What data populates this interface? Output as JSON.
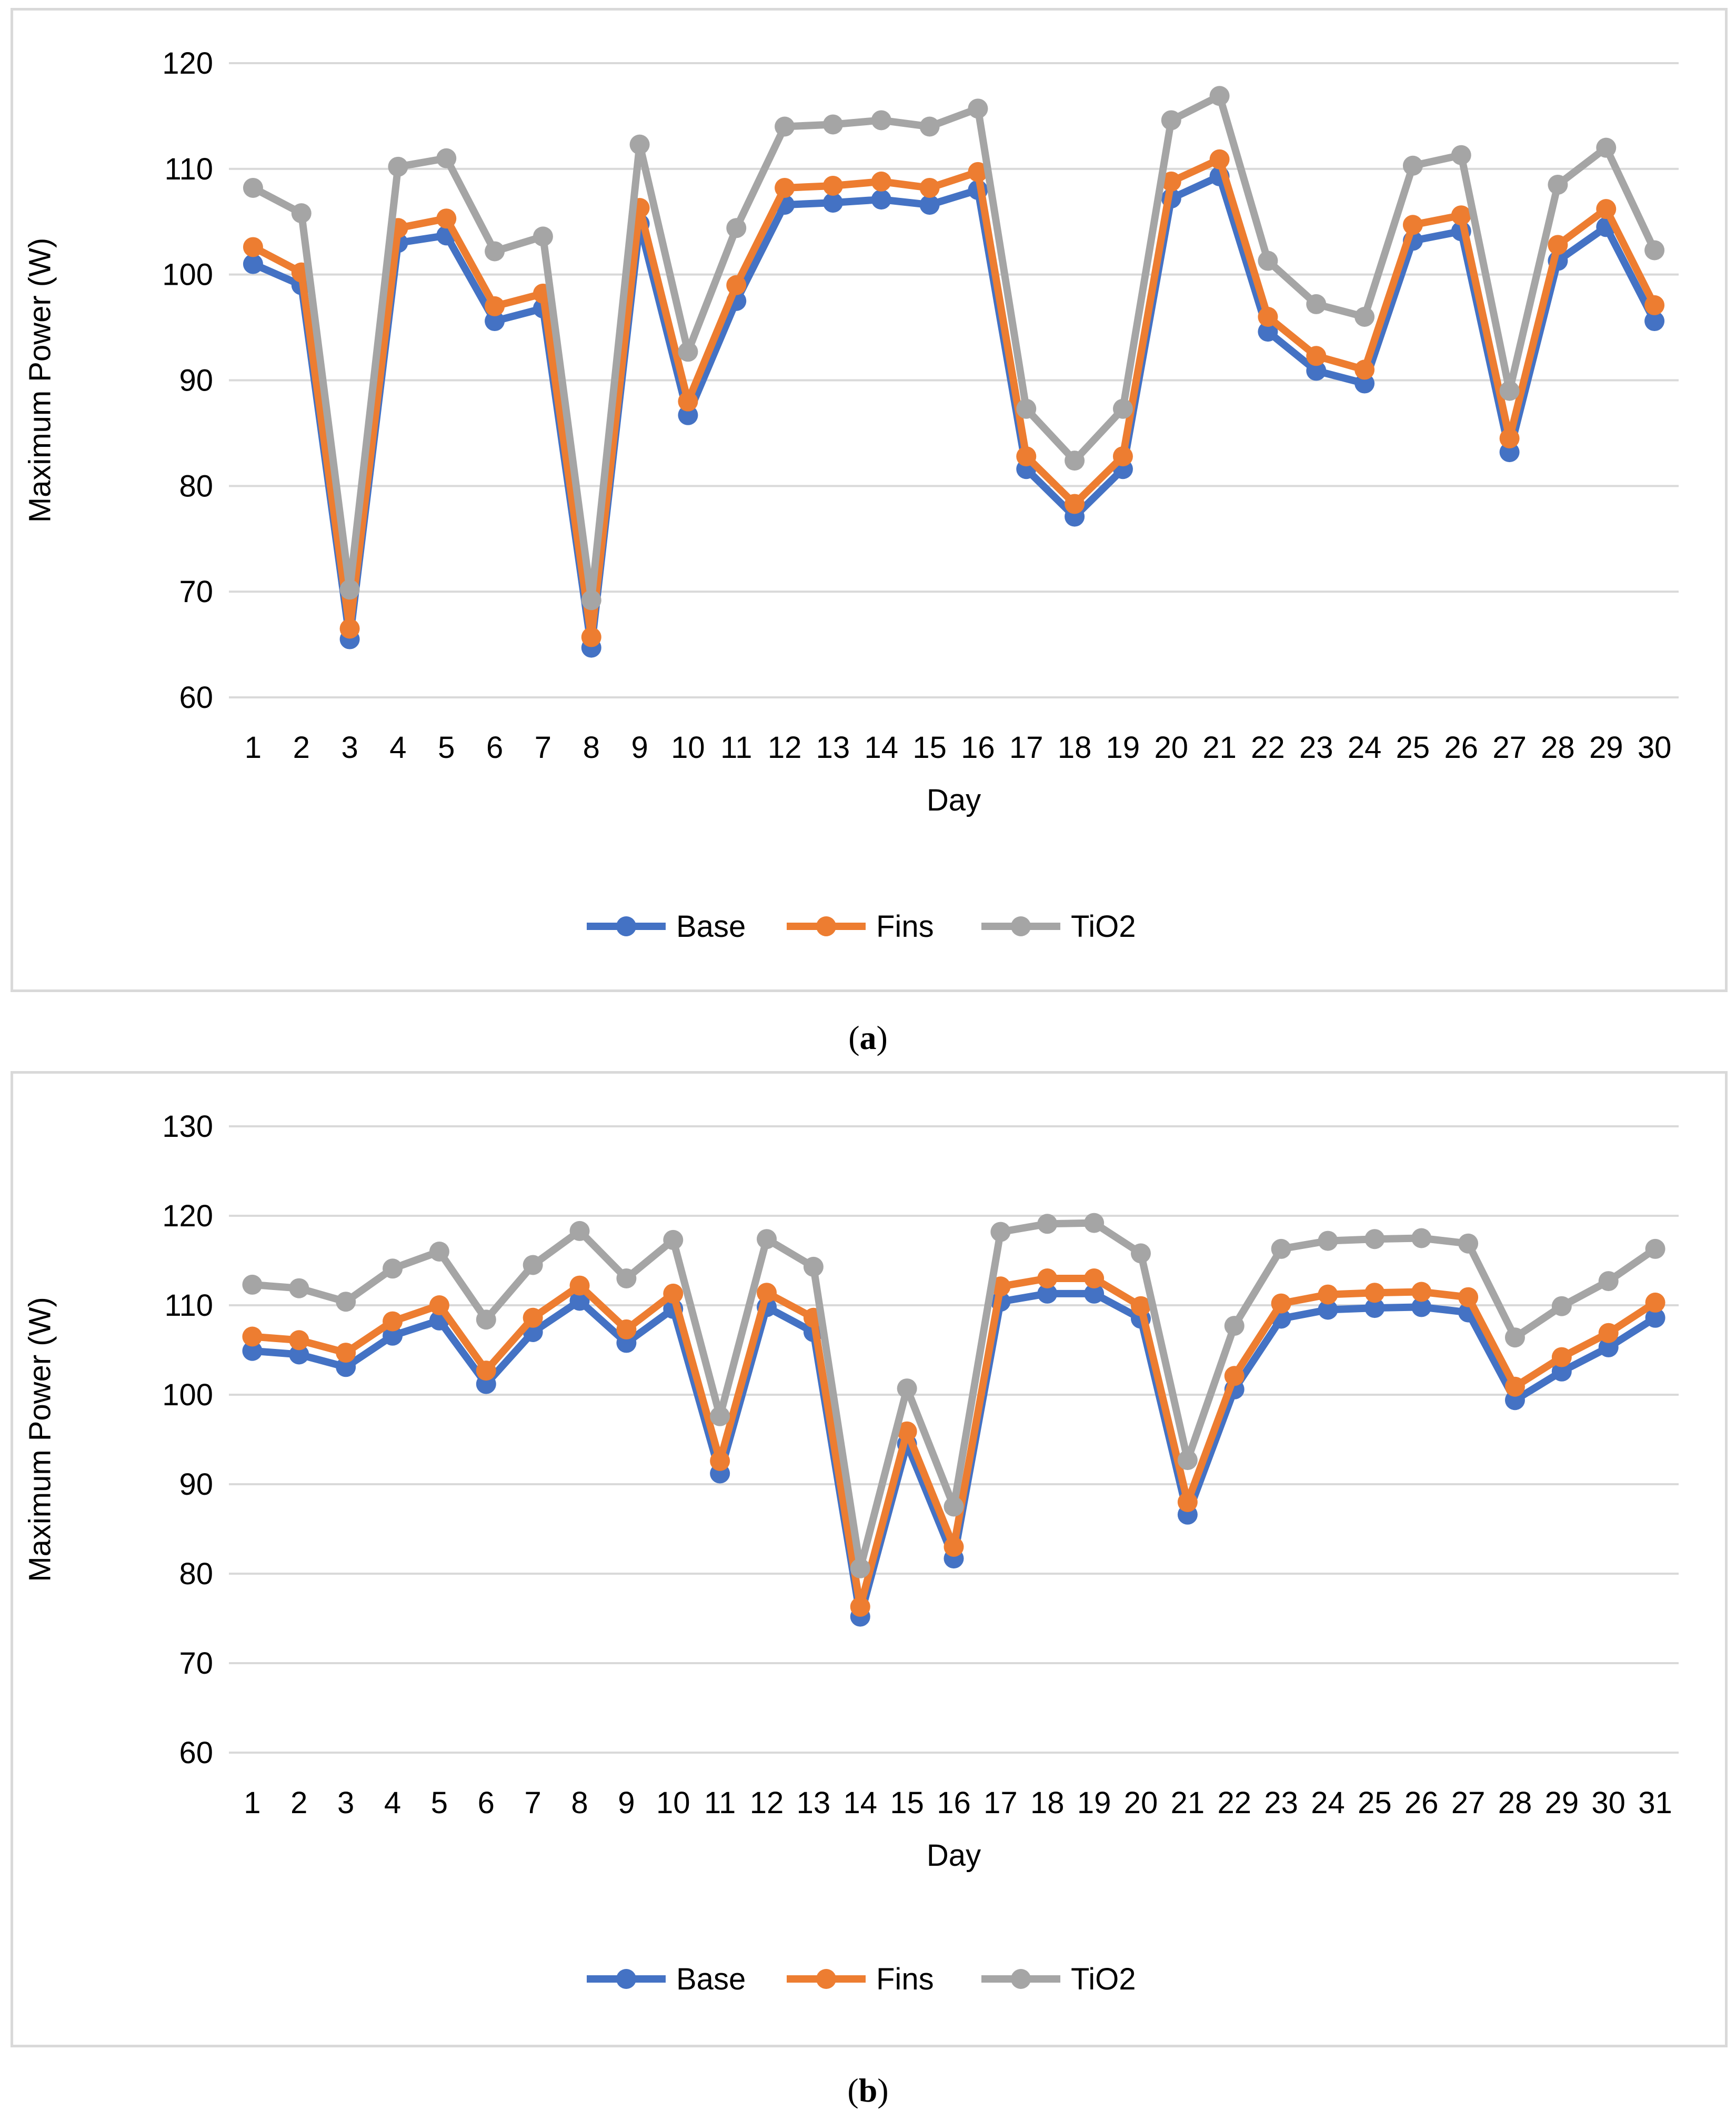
{
  "chart_data": [
    {
      "type": "line",
      "panel_label": "a",
      "xlabel": "Day",
      "ylabel": "Maximum Power (W)",
      "ylim": [
        60,
        120
      ],
      "yticks": [
        "60",
        "70",
        "80",
        "90",
        "100",
        "110",
        "120"
      ],
      "categories": [
        "1",
        "2",
        "3",
        "4",
        "5",
        "6",
        "7",
        "8",
        "9",
        "10",
        "11",
        "12",
        "13",
        "14",
        "15",
        "16",
        "17",
        "18",
        "19",
        "20",
        "21",
        "22",
        "23",
        "24",
        "25",
        "26",
        "27",
        "28",
        "29",
        "30"
      ],
      "series": [
        {
          "name": "Base",
          "color": "#4472C4",
          "values": [
            101.0,
            99.0,
            65.5,
            103.0,
            103.7,
            95.6,
            96.8,
            64.7,
            104.8,
            86.7,
            97.5,
            106.6,
            106.8,
            107.1,
            106.6,
            108.0,
            81.6,
            77.1,
            81.6,
            107.2,
            109.3,
            94.6,
            90.9,
            89.7,
            103.2,
            104.1,
            83.2,
            101.3,
            104.5,
            95.6
          ]
        },
        {
          "name": "Fins",
          "color": "#ED7D31",
          "values": [
            102.6,
            100.2,
            66.5,
            104.4,
            105.3,
            97.0,
            98.2,
            65.7,
            106.3,
            88.0,
            99.0,
            108.2,
            108.4,
            108.8,
            108.2,
            109.7,
            82.8,
            78.3,
            82.8,
            108.8,
            110.9,
            96.0,
            92.3,
            91.0,
            104.7,
            105.6,
            84.5,
            102.8,
            106.2,
            97.1
          ]
        },
        {
          "name": "TiO2",
          "color": "#A5A5A5",
          "values": [
            108.2,
            105.8,
            70.2,
            110.2,
            111.0,
            102.2,
            103.6,
            69.2,
            112.3,
            92.7,
            104.4,
            114.0,
            114.2,
            114.6,
            114.0,
            115.7,
            87.3,
            82.4,
            87.3,
            114.6,
            116.9,
            101.3,
            97.2,
            96.0,
            110.3,
            111.3,
            89.0,
            108.5,
            112.0,
            102.3
          ]
        }
      ]
    },
    {
      "type": "line",
      "panel_label": "b",
      "xlabel": "Day",
      "ylabel": "Maximum Power (W)",
      "ylim": [
        60,
        130
      ],
      "yticks": [
        "60",
        "70",
        "80",
        "90",
        "100",
        "110",
        "120",
        "130"
      ],
      "categories": [
        "1",
        "2",
        "3",
        "4",
        "5",
        "6",
        "7",
        "8",
        "9",
        "10",
        "11",
        "12",
        "13",
        "14",
        "15",
        "16",
        "17",
        "18",
        "19",
        "20",
        "21",
        "22",
        "23",
        "24",
        "25",
        "26",
        "27",
        "28",
        "29",
        "30",
        "31"
      ],
      "series": [
        {
          "name": "Base",
          "color": "#4472C4",
          "values": [
            104.9,
            104.5,
            103.1,
            106.6,
            108.3,
            101.2,
            107.0,
            110.5,
            105.8,
            109.6,
            91.2,
            109.8,
            107.0,
            75.2,
            94.5,
            81.7,
            110.4,
            111.3,
            111.3,
            108.5,
            86.6,
            100.6,
            108.5,
            109.5,
            109.7,
            109.8,
            109.2,
            99.4,
            102.6,
            105.3,
            108.6
          ]
        },
        {
          "name": "Fins",
          "color": "#ED7D31",
          "values": [
            106.5,
            106.1,
            104.7,
            108.2,
            110.0,
            102.7,
            108.6,
            112.2,
            107.3,
            111.3,
            92.6,
            111.4,
            108.6,
            76.3,
            95.9,
            83.0,
            112.1,
            113.0,
            113.0,
            109.9,
            88.0,
            102.1,
            110.2,
            111.2,
            111.4,
            111.5,
            110.9,
            100.9,
            104.2,
            106.9,
            110.3
          ]
        },
        {
          "name": "TiO2",
          "color": "#A5A5A5",
          "values": [
            112.3,
            111.9,
            110.4,
            114.1,
            116.0,
            108.4,
            114.5,
            118.3,
            113.0,
            117.3,
            97.6,
            117.4,
            114.3,
            80.6,
            100.7,
            87.5,
            118.2,
            119.1,
            119.2,
            115.8,
            92.7,
            107.7,
            116.3,
            117.2,
            117.4,
            117.5,
            116.9,
            106.4,
            109.9,
            112.7,
            116.3
          ]
        }
      ]
    }
  ],
  "captions": {
    "a": "a",
    "b": "b"
  }
}
